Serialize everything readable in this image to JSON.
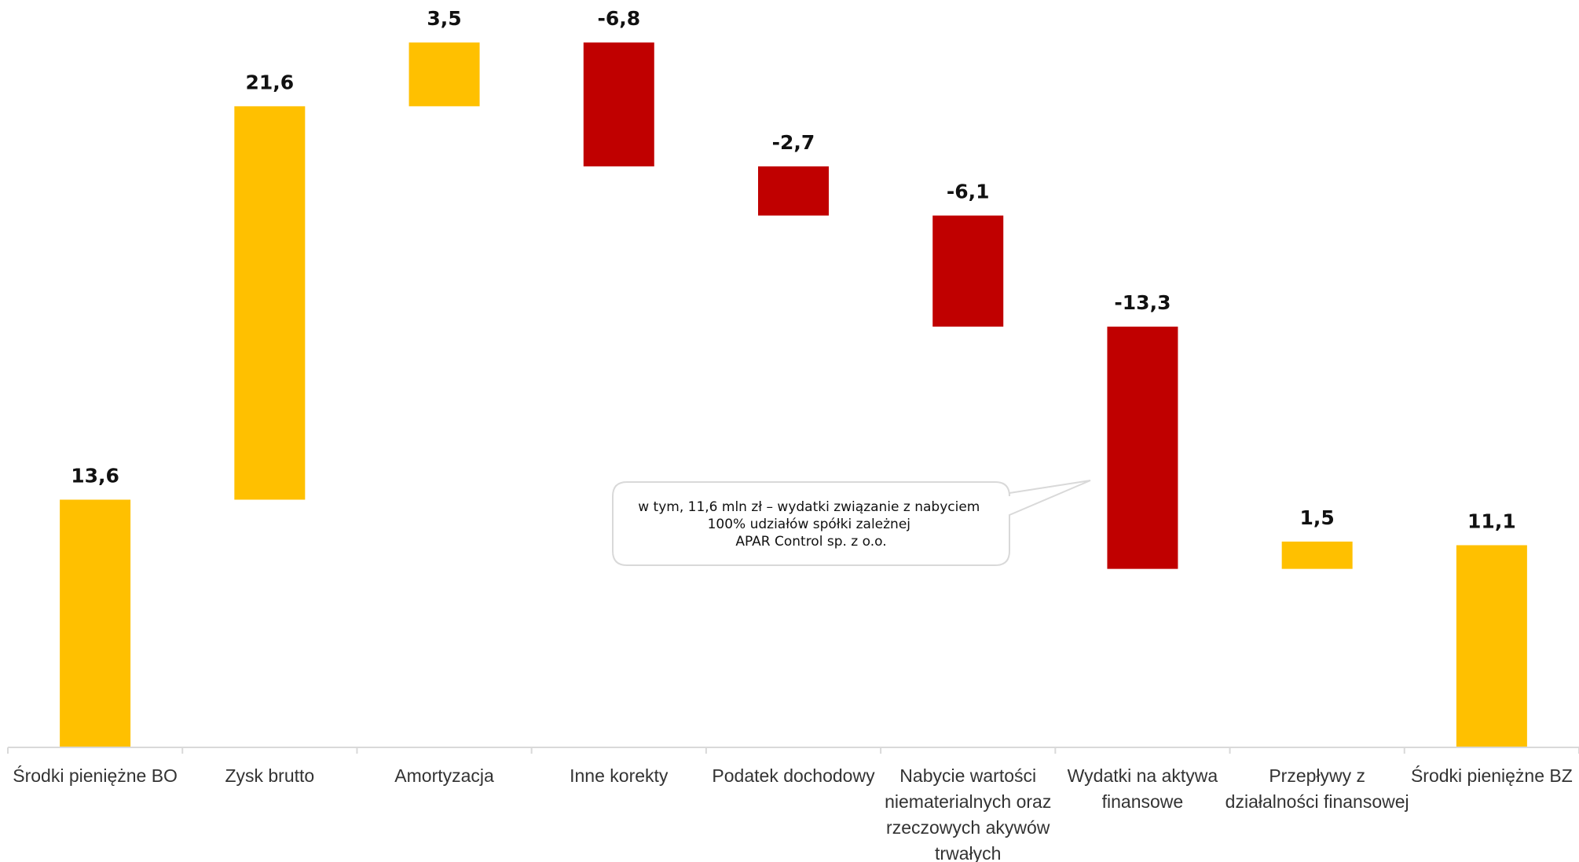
{
  "chart_data": {
    "type": "waterfall",
    "title": "",
    "xlabel": "",
    "ylabel": "",
    "ylim": [
      0,
      38.7
    ],
    "grid": false,
    "legend": "none",
    "categories": [
      "Środki pieniężne BO",
      "Zysk brutto",
      "Amortyzacja",
      "Inne korekty",
      "Podatek dochodowy",
      "Nabycie wartości niematerialnych oraz rzeczowych akywów trwałych",
      "Wydatki na aktywa finansowe",
      "Przepływy z działalności finansowej",
      "Środki pieniężne BZ"
    ],
    "category_lines": [
      [
        "Środki pieniężne BO"
      ],
      [
        "Zysk brutto"
      ],
      [
        "Amortyzacja"
      ],
      [
        "Inne korekty"
      ],
      [
        "Podatek dochodowy"
      ],
      [
        "Nabycie wartości",
        "niematerialnych oraz",
        "rzeczowych akywów",
        "trwałych"
      ],
      [
        "Wydatki na aktywa",
        "finansowe"
      ],
      [
        "Przepływy z",
        "działalności finansowej"
      ],
      [
        "Środki pieniężne BZ"
      ]
    ],
    "values": [
      13.6,
      21.6,
      3.5,
      -6.8,
      -2.7,
      -6.1,
      -13.3,
      1.5,
      11.1
    ],
    "value_labels": [
      "13,6",
      "21,6",
      "3,5",
      "-6,8",
      "-2,7",
      "-6,1",
      "-13,3",
      "1,5",
      "11,1"
    ],
    "kinds": [
      "total",
      "delta",
      "delta",
      "delta",
      "delta",
      "delta",
      "delta",
      "delta",
      "total"
    ],
    "colors": {
      "positive": "#FFC000",
      "negative": "#C00000",
      "total": "#FFC000",
      "axis": "#D9D9D9"
    },
    "annotation": {
      "lines": [
        "w tym, 11,6 mln zł – wydatki związanie z nabyciem",
        "100% udziałów spółki zależnej",
        "APAR Control sp. z o.o."
      ],
      "points_to": "Wydatki na aktywa finansowe"
    }
  }
}
